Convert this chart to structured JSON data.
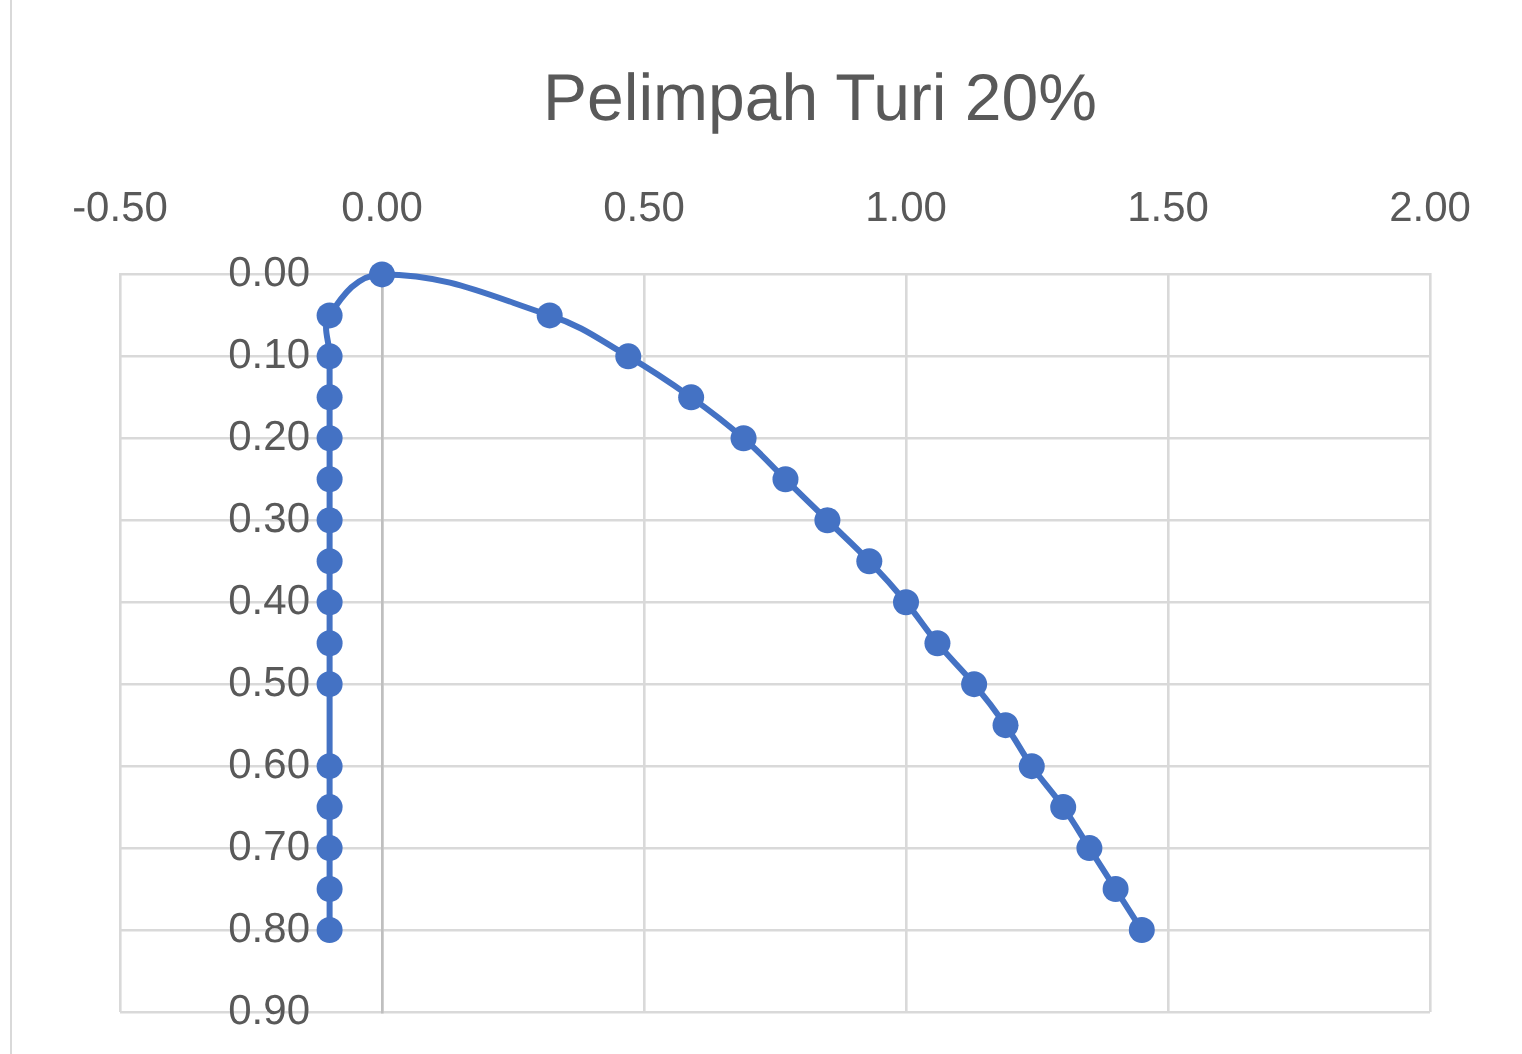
{
  "chart_data": {
    "type": "line",
    "title": "Pelimpah Turi 20%",
    "x": [
      -0.1,
      -0.1,
      -0.1,
      -0.1,
      -0.1,
      -0.1,
      -0.1,
      -0.1,
      -0.1,
      -0.1,
      -0.1,
      -0.1,
      -0.1,
      -0.1,
      -0.1,
      0,
      0.32,
      0.47,
      0.59,
      0.69,
      0.77,
      0.85,
      0.93,
      1.0,
      1.06,
      1.13,
      1.19,
      1.24,
      1.3,
      1.35,
      1.4,
      1.45
    ],
    "values": [
      0.8,
      0.75,
      0.7,
      0.65,
      0.6,
      0.5,
      0.45,
      0.4,
      0.35,
      0.3,
      0.25,
      0.2,
      0.15,
      0.1,
      0.05,
      0,
      0.05,
      0.1,
      0.15,
      0.2,
      0.25,
      0.3,
      0.35,
      0.4,
      0.45,
      0.5,
      0.55,
      0.6,
      0.65,
      0.7,
      0.75,
      0.8
    ],
    "color": "#4472c4",
    "marker": "circle",
    "xlim": [
      -0.5,
      2
    ],
    "xticks": [
      {
        "value": -0.5,
        "label": "-0.50"
      },
      {
        "value": 0,
        "label": "0.00"
      },
      {
        "value": 0.5,
        "label": "0.50"
      },
      {
        "value": 1,
        "label": "1.00"
      },
      {
        "value": 1.5,
        "label": "1.50"
      },
      {
        "value": 2,
        "label": "2.00"
      }
    ],
    "ylim": [
      0.9,
      0
    ],
    "yticks": [
      {
        "value": 0,
        "label": "0.00"
      },
      {
        "value": 0.1,
        "label": "0.10"
      },
      {
        "value": 0.2,
        "label": "0.20"
      },
      {
        "value": 0.3,
        "label": "0.30"
      },
      {
        "value": 0.4,
        "label": "0.40"
      },
      {
        "value": 0.5,
        "label": "0.50"
      },
      {
        "value": 0.6,
        "label": "0.60"
      },
      {
        "value": 0.7,
        "label": "0.70"
      },
      {
        "value": 0.8,
        "label": "0.80"
      },
      {
        "value": 0.9,
        "label": "0.90"
      }
    ],
    "grid": true
  }
}
